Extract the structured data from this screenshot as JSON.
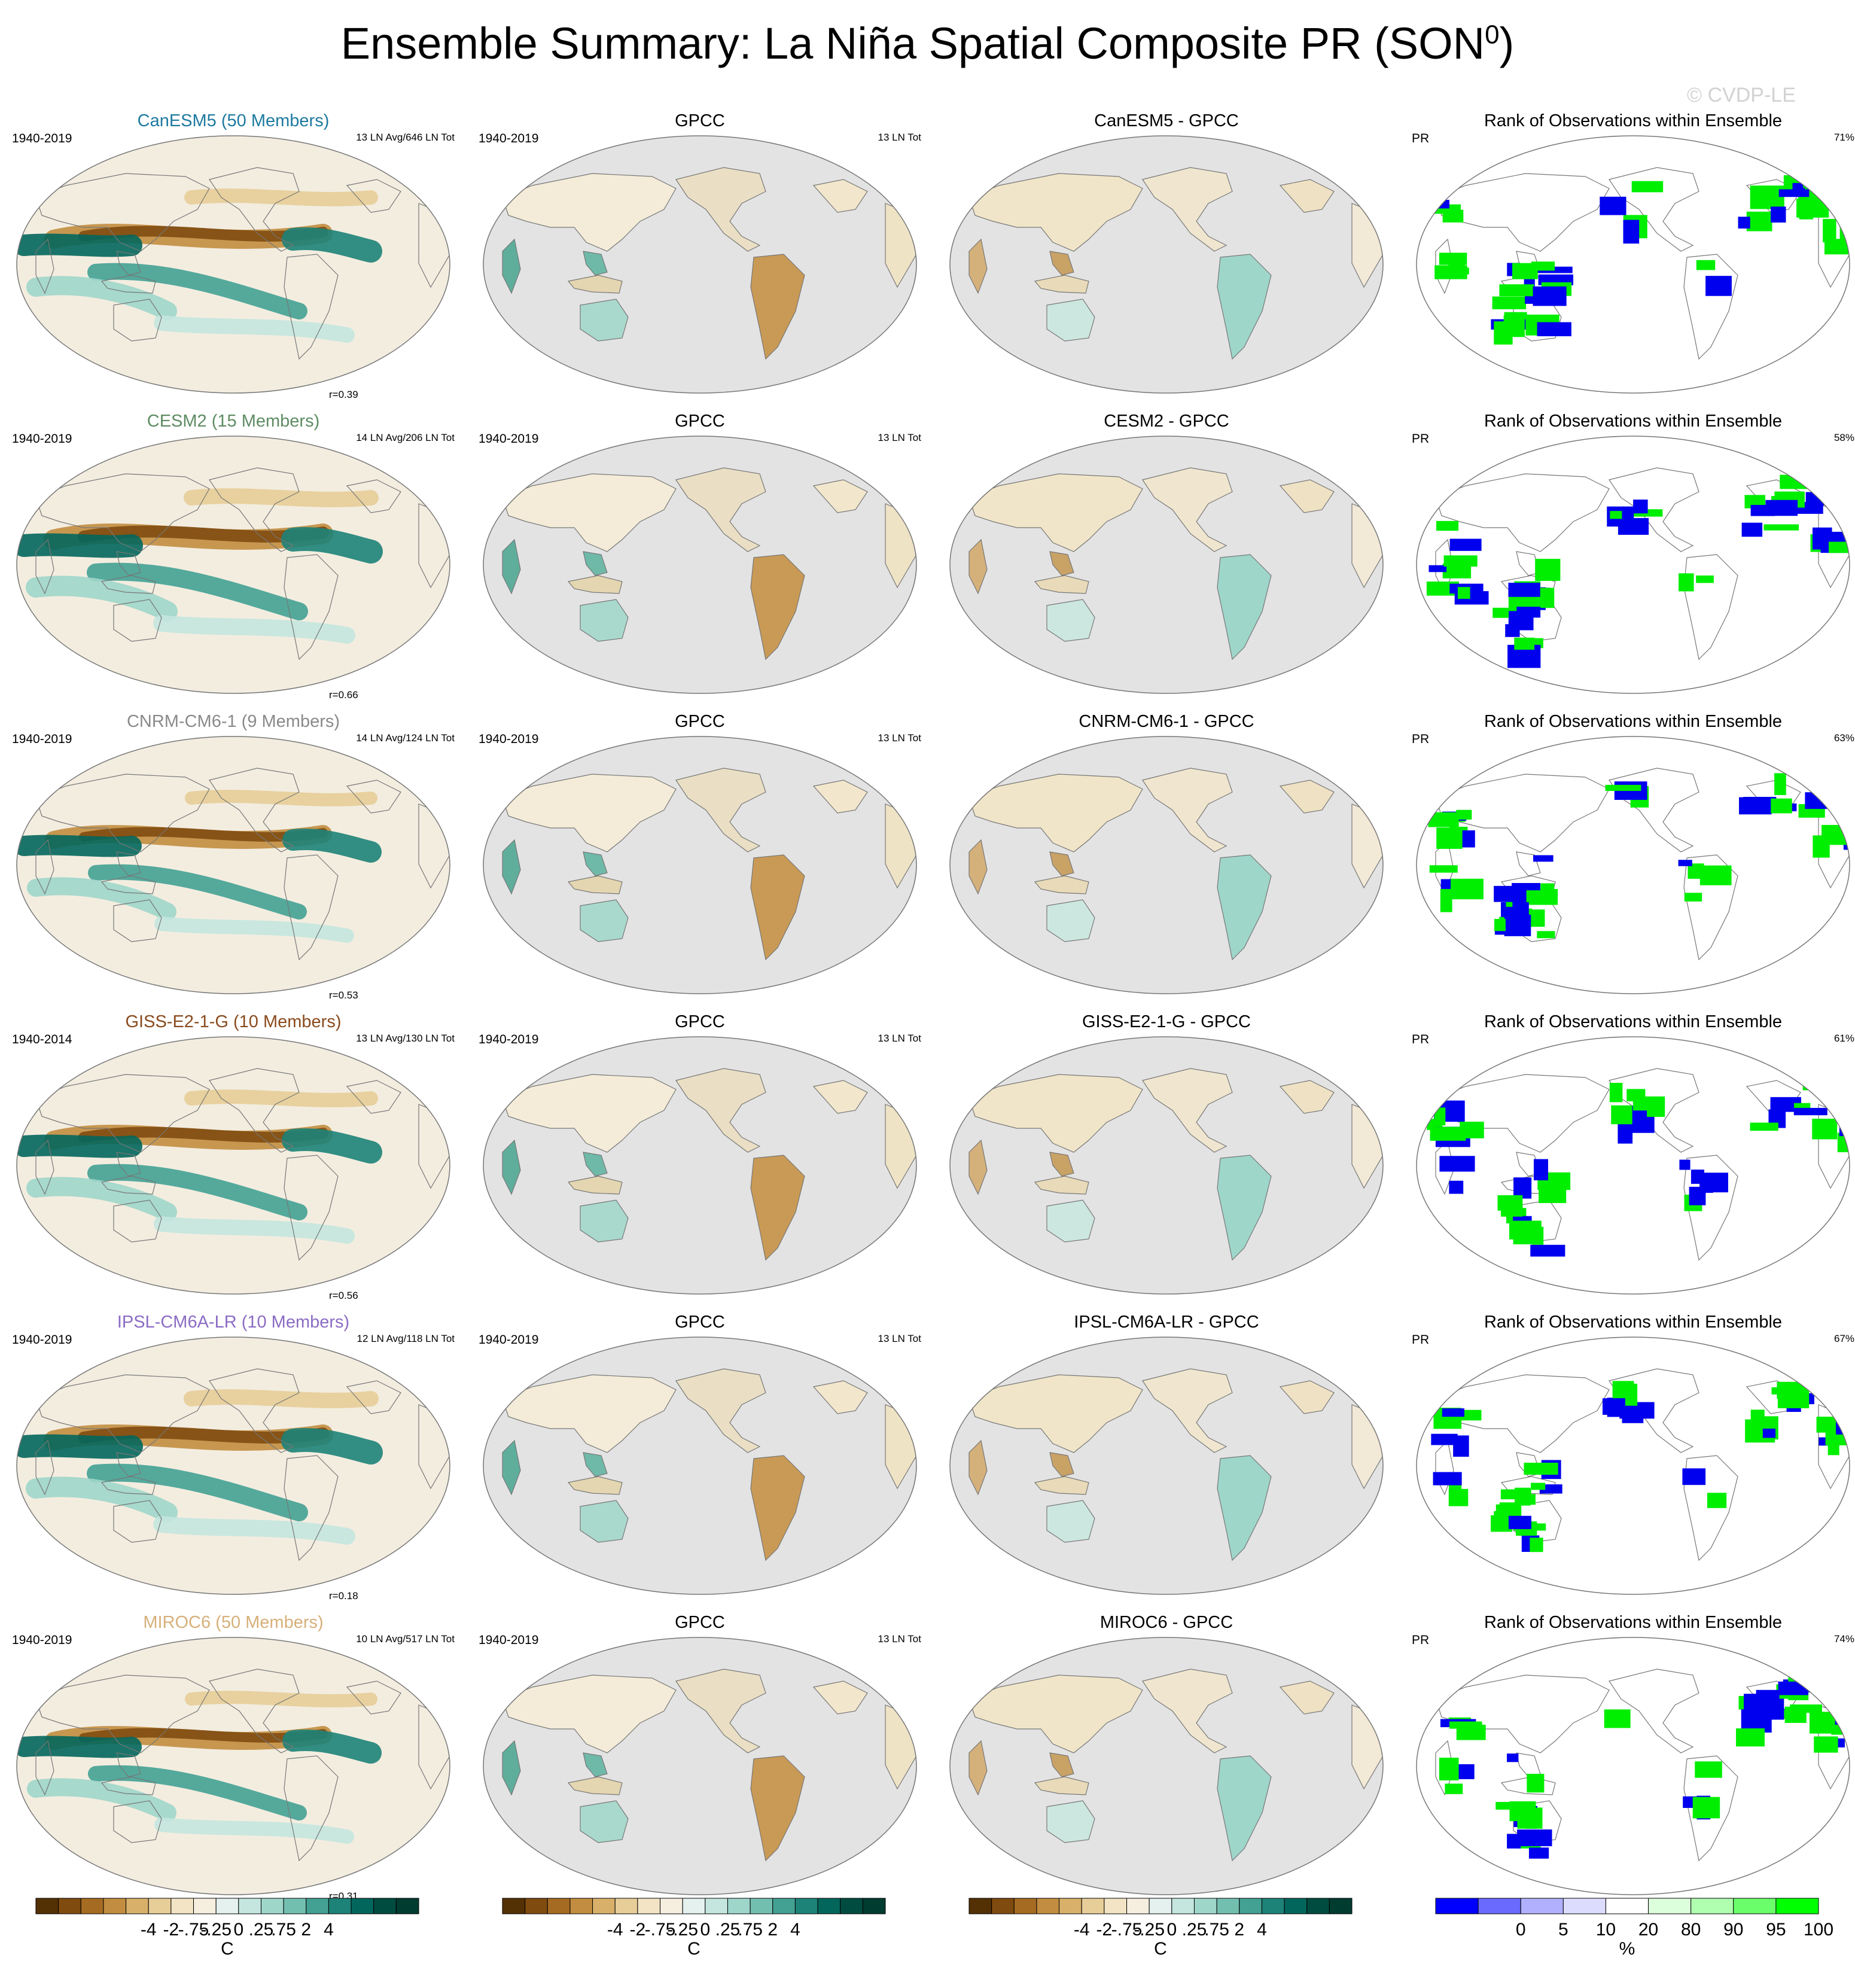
{
  "header": {
    "title": "Ensemble Summary: La Niña Spatial Composite PR (SON",
    "title_sup": "0",
    "title_close": ")",
    "watermark": "© CVDP-LE"
  },
  "columns": [
    "model",
    "obs",
    "diff",
    "rank"
  ],
  "rows": [
    {
      "model": {
        "title": "CanESM5 (50 Members)",
        "title_color": "#1e7aa0",
        "period": "1940-2019",
        "events": "13 LN Avg/646 LN Tot",
        "r": "r=0.39"
      },
      "obs": {
        "title": "GPCC",
        "period": "1940-2019",
        "events": "13 LN Tot"
      },
      "diff": {
        "title": "CanESM5 - GPCC"
      },
      "rank": {
        "title": "Rank of Observations within Ensemble",
        "var": "PR",
        "pct": "71%"
      }
    },
    {
      "model": {
        "title": "CESM2 (15 Members)",
        "title_color": "#5e8c63",
        "period": "1940-2019",
        "events": "14 LN Avg/206 LN Tot",
        "r": "r=0.66"
      },
      "obs": {
        "title": "GPCC",
        "period": "1940-2019",
        "events": "13 LN Tot"
      },
      "diff": {
        "title": "CESM2 - GPCC"
      },
      "rank": {
        "title": "Rank of Observations within Ensemble",
        "var": "PR",
        "pct": "58%"
      }
    },
    {
      "model": {
        "title": "CNRM-CM6-1 (9 Members)",
        "title_color": "#8a8a8a",
        "period": "1940-2019",
        "events": "14 LN Avg/124 LN Tot",
        "r": "r=0.53"
      },
      "obs": {
        "title": "GPCC",
        "period": "1940-2019",
        "events": "13 LN Tot"
      },
      "diff": {
        "title": "CNRM-CM6-1 - GPCC"
      },
      "rank": {
        "title": "Rank of Observations within Ensemble",
        "var": "PR",
        "pct": "63%"
      }
    },
    {
      "model": {
        "title": "GISS-E2-1-G (10 Members)",
        "title_color": "#8a4b1e",
        "period": "1940-2014",
        "events": "13 LN Avg/130 LN Tot",
        "r": "r=0.56"
      },
      "obs": {
        "title": "GPCC",
        "period": "1940-2019",
        "events": "13 LN Tot"
      },
      "diff": {
        "title": "GISS-E2-1-G - GPCC"
      },
      "rank": {
        "title": "Rank of Observations within Ensemble",
        "var": "PR",
        "pct": "61%"
      }
    },
    {
      "model": {
        "title": "IPSL-CM6A-LR (10 Members)",
        "title_color": "#8b6cc4",
        "period": "1940-2019",
        "events": "12 LN Avg/118 LN Tot",
        "r": "r=0.18"
      },
      "obs": {
        "title": "GPCC",
        "period": "1940-2019",
        "events": "13 LN Tot"
      },
      "diff": {
        "title": "IPSL-CM6A-LR - GPCC"
      },
      "rank": {
        "title": "Rank of Observations within Ensemble",
        "var": "PR",
        "pct": "67%"
      }
    },
    {
      "model": {
        "title": "MIROC6 (50 Members)",
        "title_color": "#d7b07a",
        "period": "1940-2019",
        "events": "10 LN Avg/517 LN Tot",
        "r": "r=0.31"
      },
      "obs": {
        "title": "GPCC",
        "period": "1940-2019",
        "events": "13 LN Tot"
      },
      "diff": {
        "title": "MIROC6 - GPCC"
      },
      "rank": {
        "title": "Rank of Observations within Ensemble",
        "var": "PR",
        "pct": "74%"
      }
    }
  ],
  "chart_data": {
    "type": "heatmap",
    "projection": "Robinson (Pacific-centered)",
    "diverging_colorbar": {
      "unit": "C",
      "tick_labels": [
        "-4",
        "-2",
        "-.75",
        "-.25",
        "0",
        ".25",
        ".75",
        "2",
        "4"
      ],
      "colors": [
        "#543005",
        "#7f4b0f",
        "#a66b22",
        "#c28d40",
        "#d8b06a",
        "#e7cd98",
        "#f2e4c4",
        "#f6efe0",
        "#e4f1ee",
        "#c4e6df",
        "#9ed6ca",
        "#72bfb0",
        "#43a193",
        "#1d8278",
        "#03665c",
        "#014c41",
        "#003c30"
      ]
    },
    "rank_colorbar": {
      "unit": "%",
      "tick_labels": [
        "0",
        "5",
        "10",
        "20",
        "80",
        "90",
        "95",
        "100"
      ],
      "colors": [
        "#0000ff",
        "#6a6aff",
        "#b0b0ff",
        "#dcdcff",
        "#ffffff",
        "#dcffdc",
        "#b0ffb0",
        "#6aff6a",
        "#00ff00"
      ]
    }
  }
}
